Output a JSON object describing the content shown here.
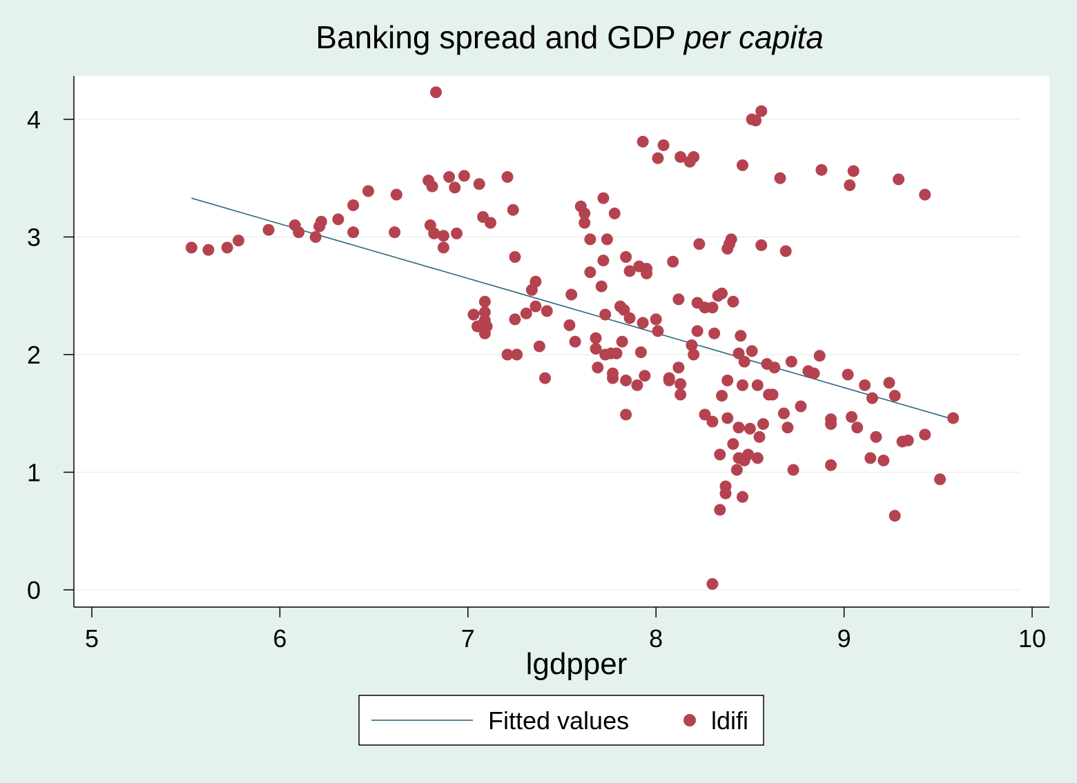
{
  "chart_data": {
    "type": "scatter",
    "title": "Banking spread and GDP",
    "title_italic": "per capita",
    "xlabel": "lgdpper",
    "ylabel": "",
    "xlim": [
      5,
      10
    ],
    "ylim": [
      0,
      4
    ],
    "xticks": [
      "5",
      "6",
      "7",
      "8",
      "9",
      "10"
    ],
    "yticks": [
      "0",
      "1",
      "2",
      "3",
      "4"
    ],
    "grid": true,
    "legend_position": "bottom",
    "colors": {
      "points": "#b5434f",
      "line": "#1a5e74",
      "background": "#e5f1ee",
      "plot": "#ffffff"
    },
    "series": [
      {
        "name": "Fitted values",
        "kind": "line",
        "x": [
          5.53,
          9.58
        ],
        "y": [
          3.33,
          1.45
        ]
      },
      {
        "name": "ldifi",
        "kind": "scatter",
        "points": [
          [
            5.53,
            2.91
          ],
          [
            5.62,
            2.89
          ],
          [
            5.72,
            2.91
          ],
          [
            5.78,
            2.97
          ],
          [
            5.94,
            3.06
          ],
          [
            6.08,
            3.1
          ],
          [
            6.1,
            3.04
          ],
          [
            6.19,
            3.0
          ],
          [
            6.21,
            3.09
          ],
          [
            6.22,
            3.13
          ],
          [
            6.31,
            3.15
          ],
          [
            6.39,
            3.27
          ],
          [
            6.39,
            3.04
          ],
          [
            6.47,
            3.39
          ],
          [
            6.61,
            3.04
          ],
          [
            6.62,
            3.36
          ],
          [
            6.79,
            3.48
          ],
          [
            6.8,
            3.1
          ],
          [
            6.81,
            3.43
          ],
          [
            6.82,
            3.03
          ],
          [
            6.83,
            4.23
          ],
          [
            6.87,
            2.91
          ],
          [
            6.87,
            3.01
          ],
          [
            6.9,
            3.51
          ],
          [
            6.93,
            3.42
          ],
          [
            6.94,
            3.03
          ],
          [
            6.98,
            3.52
          ],
          [
            7.03,
            2.34
          ],
          [
            7.05,
            2.24
          ],
          [
            7.06,
            3.45
          ],
          [
            7.08,
            3.17
          ],
          [
            7.08,
            2.26
          ],
          [
            7.09,
            2.45
          ],
          [
            7.09,
            2.36
          ],
          [
            7.09,
            2.29
          ],
          [
            7.09,
            2.18
          ],
          [
            7.1,
            2.24
          ],
          [
            7.12,
            3.12
          ],
          [
            7.21,
            2.0
          ],
          [
            7.21,
            3.51
          ],
          [
            7.24,
            3.23
          ],
          [
            7.25,
            2.83
          ],
          [
            7.25,
            2.3
          ],
          [
            7.26,
            2.0
          ],
          [
            7.31,
            2.35
          ],
          [
            7.34,
            2.55
          ],
          [
            7.36,
            2.62
          ],
          [
            7.36,
            2.41
          ],
          [
            7.38,
            2.07
          ],
          [
            7.41,
            1.8
          ],
          [
            7.42,
            2.37
          ],
          [
            7.54,
            2.25
          ],
          [
            7.55,
            2.51
          ],
          [
            7.57,
            2.11
          ],
          [
            7.6,
            3.26
          ],
          [
            7.62,
            3.2
          ],
          [
            7.62,
            3.12
          ],
          [
            7.65,
            2.7
          ],
          [
            7.65,
            2.98
          ],
          [
            7.68,
            2.14
          ],
          [
            7.68,
            2.05
          ],
          [
            7.69,
            1.89
          ],
          [
            7.71,
            2.58
          ],
          [
            7.72,
            3.33
          ],
          [
            7.72,
            2.8
          ],
          [
            7.73,
            2.34
          ],
          [
            7.73,
            2.0
          ],
          [
            7.74,
            2.98
          ],
          [
            7.76,
            2.01
          ],
          [
            7.77,
            1.84
          ],
          [
            7.77,
            1.8
          ],
          [
            7.78,
            3.2
          ],
          [
            7.79,
            2.01
          ],
          [
            7.81,
            2.41
          ],
          [
            7.82,
            2.11
          ],
          [
            7.83,
            2.38
          ],
          [
            7.84,
            2.83
          ],
          [
            7.84,
            1.78
          ],
          [
            7.84,
            1.49
          ],
          [
            7.86,
            2.31
          ],
          [
            7.86,
            2.71
          ],
          [
            7.9,
            1.74
          ],
          [
            7.91,
            2.75
          ],
          [
            7.92,
            2.02
          ],
          [
            7.93,
            3.81
          ],
          [
            7.93,
            2.27
          ],
          [
            7.94,
            1.82
          ],
          [
            7.95,
            2.73
          ],
          [
            7.95,
            2.69
          ],
          [
            8.0,
            2.3
          ],
          [
            8.01,
            3.67
          ],
          [
            8.01,
            2.2
          ],
          [
            8.04,
            3.78
          ],
          [
            8.07,
            1.8
          ],
          [
            8.07,
            1.78
          ],
          [
            8.09,
            2.79
          ],
          [
            8.12,
            2.47
          ],
          [
            8.12,
            1.89
          ],
          [
            8.13,
            3.68
          ],
          [
            8.13,
            1.75
          ],
          [
            8.13,
            1.66
          ],
          [
            8.18,
            3.64
          ],
          [
            8.19,
            2.08
          ],
          [
            8.2,
            3.68
          ],
          [
            8.2,
            2.0
          ],
          [
            8.22,
            2.44
          ],
          [
            8.22,
            2.2
          ],
          [
            8.23,
            2.94
          ],
          [
            8.26,
            2.4
          ],
          [
            8.26,
            1.49
          ],
          [
            8.3,
            2.4
          ],
          [
            8.3,
            1.43
          ],
          [
            8.3,
            0.05
          ],
          [
            8.31,
            2.18
          ],
          [
            8.33,
            2.5
          ],
          [
            8.34,
            1.15
          ],
          [
            8.34,
            0.68
          ],
          [
            8.35,
            2.52
          ],
          [
            8.35,
            1.65
          ],
          [
            8.37,
            0.88
          ],
          [
            8.37,
            0.82
          ],
          [
            8.38,
            1.78
          ],
          [
            8.38,
            2.9
          ],
          [
            8.38,
            1.46
          ],
          [
            8.39,
            2.94
          ],
          [
            8.4,
            2.98
          ],
          [
            8.41,
            2.45
          ],
          [
            8.41,
            1.24
          ],
          [
            8.43,
            1.02
          ],
          [
            8.44,
            1.38
          ],
          [
            8.44,
            1.12
          ],
          [
            8.44,
            2.01
          ],
          [
            8.45,
            2.16
          ],
          [
            8.46,
            3.61
          ],
          [
            8.46,
            1.74
          ],
          [
            8.46,
            0.79
          ],
          [
            8.47,
            1.94
          ],
          [
            8.47,
            1.1
          ],
          [
            8.49,
            1.15
          ],
          [
            8.5,
            1.37
          ],
          [
            8.51,
            2.03
          ],
          [
            8.51,
            4.0
          ],
          [
            8.53,
            3.99
          ],
          [
            8.54,
            1.74
          ],
          [
            8.54,
            1.12
          ],
          [
            8.55,
            1.3
          ],
          [
            8.56,
            4.07
          ],
          [
            8.56,
            2.93
          ],
          [
            8.57,
            1.41
          ],
          [
            8.59,
            1.92
          ],
          [
            8.6,
            1.66
          ],
          [
            8.62,
            1.66
          ],
          [
            8.63,
            1.89
          ],
          [
            8.66,
            3.5
          ],
          [
            8.68,
            1.5
          ],
          [
            8.69,
            2.88
          ],
          [
            8.7,
            1.38
          ],
          [
            8.72,
            1.94
          ],
          [
            8.73,
            1.02
          ],
          [
            8.77,
            1.56
          ],
          [
            8.81,
            1.86
          ],
          [
            8.84,
            1.84
          ],
          [
            8.87,
            1.99
          ],
          [
            8.88,
            3.57
          ],
          [
            8.93,
            1.41
          ],
          [
            8.93,
            1.45
          ],
          [
            8.93,
            1.06
          ],
          [
            9.02,
            1.83
          ],
          [
            9.03,
            3.44
          ],
          [
            9.04,
            1.47
          ],
          [
            9.05,
            3.56
          ],
          [
            9.07,
            1.38
          ],
          [
            9.11,
            1.74
          ],
          [
            9.14,
            1.12
          ],
          [
            9.15,
            1.63
          ],
          [
            9.17,
            1.3
          ],
          [
            9.21,
            1.1
          ],
          [
            9.24,
            1.76
          ],
          [
            9.27,
            1.65
          ],
          [
            9.27,
            0.63
          ],
          [
            9.29,
            3.49
          ],
          [
            9.31,
            1.26
          ],
          [
            9.34,
            1.27
          ],
          [
            9.43,
            3.36
          ],
          [
            9.43,
            1.32
          ],
          [
            9.51,
            0.94
          ],
          [
            9.58,
            1.46
          ]
        ]
      }
    ]
  }
}
